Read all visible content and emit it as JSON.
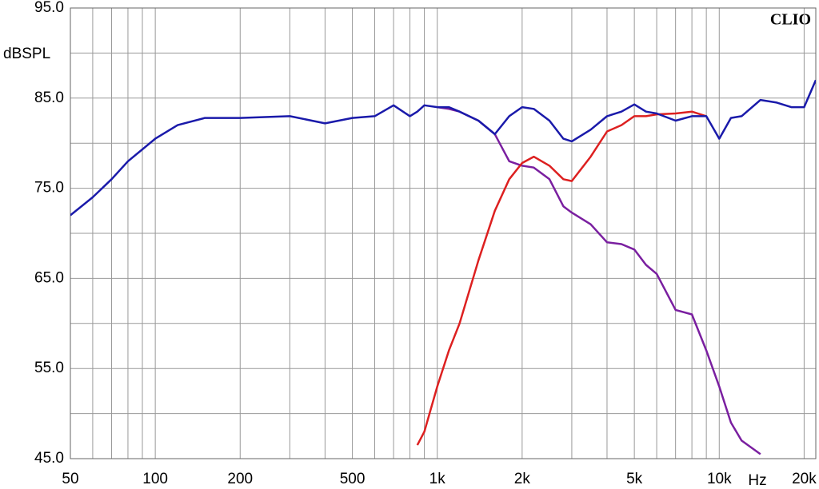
{
  "chart_data": {
    "type": "line",
    "y_label": "dBSPL",
    "x_label": "Hz",
    "brand": "CLIO",
    "log_x": true,
    "grid": true,
    "xlim": [
      50,
      22000
    ],
    "ylim": [
      45,
      95
    ],
    "xticks": [
      50,
      100,
      200,
      500,
      {
        "value": 1000,
        "label": "1k"
      },
      {
        "value": 2000,
        "label": "2k"
      },
      {
        "value": 5000,
        "label": "5k"
      },
      {
        "value": 10000,
        "label": "10k"
      },
      {
        "value": 20000,
        "label": "20k"
      }
    ],
    "xminorticks": [
      60,
      70,
      80,
      90,
      300,
      400,
      600,
      700,
      800,
      900,
      3000,
      4000,
      6000,
      7000,
      8000,
      9000
    ],
    "yticks": [
      {
        "value": 95,
        "label": "95.0"
      },
      {
        "value": 85,
        "label": "85.0"
      },
      {
        "value": 75,
        "label": "75.0"
      },
      {
        "value": 65,
        "label": "65.0"
      },
      {
        "value": 55,
        "label": "55.0"
      },
      {
        "value": 45,
        "label": "45.0"
      }
    ],
    "yminorticks": [
      90,
      80,
      70,
      60,
      50
    ],
    "x": [
      50,
      60,
      70,
      80,
      100,
      120,
      150,
      200,
      300,
      400,
      500,
      600,
      700,
      800,
      850,
      900,
      1000,
      1100,
      1200,
      1400,
      1600,
      1800,
      2000,
      2200,
      2500,
      2800,
      3000,
      3500,
      4000,
      4500,
      5000,
      5500,
      6000,
      7000,
      8000,
      9000,
      10000,
      11000,
      12000,
      14000,
      16000,
      18000,
      20000,
      22000
    ],
    "series": [
      {
        "color": "#7a1fa0",
        "values": [
          null,
          null,
          null,
          null,
          null,
          null,
          null,
          null,
          null,
          null,
          null,
          null,
          null,
          null,
          null,
          null,
          84.0,
          83.8,
          83.5,
          82.5,
          81.0,
          78.0,
          77.5,
          77.3,
          76.0,
          73.0,
          72.3,
          71.0,
          69.0,
          68.8,
          68.2,
          66.5,
          65.5,
          61.5,
          61.0,
          57.0,
          53.0,
          49.0,
          47.0,
          45.5,
          null,
          null,
          null,
          null
        ]
      },
      {
        "color": "#dd2020",
        "values": [
          null,
          null,
          null,
          null,
          null,
          null,
          null,
          null,
          null,
          null,
          null,
          null,
          null,
          null,
          46.5,
          48.0,
          53.0,
          57.0,
          60.0,
          67.0,
          72.5,
          76.0,
          77.8,
          78.5,
          77.5,
          76.0,
          75.8,
          78.5,
          81.3,
          82.0,
          83.0,
          83.0,
          83.2,
          83.3,
          83.5,
          83.0,
          null,
          null,
          null,
          null,
          null,
          null,
          null,
          null
        ]
      },
      {
        "color": "#1a1aaa",
        "values": [
          72.0,
          74.0,
          76.0,
          78.0,
          80.5,
          82.0,
          82.8,
          82.8,
          83.0,
          82.2,
          82.8,
          83.0,
          84.2,
          83.0,
          83.5,
          84.2,
          84.0,
          84.0,
          83.5,
          82.5,
          81.0,
          83.0,
          84.0,
          83.8,
          82.5,
          80.5,
          80.2,
          81.5,
          83.0,
          83.5,
          84.3,
          83.5,
          83.3,
          82.5,
          83.0,
          83.0,
          80.5,
          82.8,
          83.0,
          84.8,
          84.5,
          84.0,
          84.0,
          87.0
        ]
      }
    ]
  }
}
